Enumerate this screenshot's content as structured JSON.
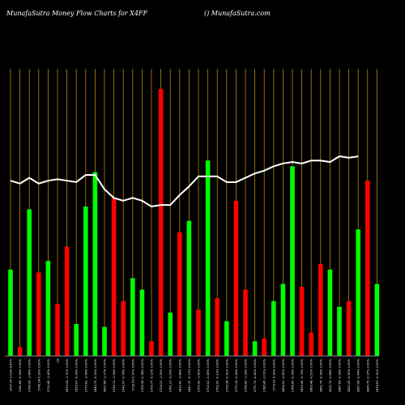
{
  "header": {
    "left": "MunafaSutra  Money Flow  Charts for X4FF",
    "right": "() MunafaSutra.com"
  },
  "colors": {
    "background": "#000000",
    "up": "#00ff00",
    "down": "#ff0000",
    "grid": "#b8860b",
    "line": "#ffffff",
    "text": "#ffffff"
  },
  "chart_data": {
    "type": "bar",
    "title": "",
    "xlabel": "",
    "ylabel": "",
    "ylim": [
      0,
      100
    ],
    "bars": [
      {
        "value": 30,
        "color": "green"
      },
      {
        "value": 3,
        "color": "red"
      },
      {
        "value": 51,
        "color": "green"
      },
      {
        "value": 29,
        "color": "red"
      },
      {
        "value": 33,
        "color": "green"
      },
      {
        "value": 18,
        "color": "red"
      },
      {
        "value": 38,
        "color": "red"
      },
      {
        "value": 11,
        "color": "green"
      },
      {
        "value": 52,
        "color": "green"
      },
      {
        "value": 64,
        "color": "green"
      },
      {
        "value": 10,
        "color": "green"
      },
      {
        "value": 55,
        "color": "red"
      },
      {
        "value": 19,
        "color": "red"
      },
      {
        "value": 27,
        "color": "green"
      },
      {
        "value": 23,
        "color": "green"
      },
      {
        "value": 5,
        "color": "red"
      },
      {
        "value": 93,
        "color": "red"
      },
      {
        "value": 15,
        "color": "green"
      },
      {
        "value": 43,
        "color": "red"
      },
      {
        "value": 47,
        "color": "green"
      },
      {
        "value": 16,
        "color": "red"
      },
      {
        "value": 68,
        "color": "green"
      },
      {
        "value": 20,
        "color": "red"
      },
      {
        "value": 12,
        "color": "green"
      },
      {
        "value": 54,
        "color": "red"
      },
      {
        "value": 23,
        "color": "red"
      },
      {
        "value": 5,
        "color": "green"
      },
      {
        "value": 6,
        "color": "red"
      },
      {
        "value": 19,
        "color": "green"
      },
      {
        "value": 25,
        "color": "green"
      },
      {
        "value": 66,
        "color": "green"
      },
      {
        "value": 24,
        "color": "red"
      },
      {
        "value": 8,
        "color": "red"
      },
      {
        "value": 32,
        "color": "red"
      },
      {
        "value": 30,
        "color": "green"
      },
      {
        "value": 17,
        "color": "green"
      },
      {
        "value": 19,
        "color": "red"
      },
      {
        "value": 44,
        "color": "green"
      },
      {
        "value": 61,
        "color": "red"
      },
      {
        "value": 25,
        "color": "green"
      }
    ],
    "line": [
      {
        "x": 0,
        "y": 61
      },
      {
        "x": 1,
        "y": 60
      },
      {
        "x": 2,
        "y": 62
      },
      {
        "x": 3,
        "y": 60
      },
      {
        "x": 4,
        "y": 61
      },
      {
        "x": 5,
        "y": 61.5
      },
      {
        "x": 6,
        "y": 61
      },
      {
        "x": 7,
        "y": 60.5
      },
      {
        "x": 8,
        "y": 63
      },
      {
        "x": 9,
        "y": 63
      },
      {
        "x": 10,
        "y": 58
      },
      {
        "x": 11,
        "y": 55
      },
      {
        "x": 12,
        "y": 54
      },
      {
        "x": 13,
        "y": 55
      },
      {
        "x": 14,
        "y": 54
      },
      {
        "x": 15,
        "y": 52
      },
      {
        "x": 16,
        "y": 52.5
      },
      {
        "x": 17,
        "y": 52.5
      },
      {
        "x": 18,
        "y": 56
      },
      {
        "x": 19,
        "y": 59
      },
      {
        "x": 20,
        "y": 62.5
      },
      {
        "x": 21,
        "y": 62.5
      },
      {
        "x": 22,
        "y": 62.5
      },
      {
        "x": 23,
        "y": 60.5
      },
      {
        "x": 24,
        "y": 60.5
      },
      {
        "x": 25,
        "y": 62
      },
      {
        "x": 26,
        "y": 63.5
      },
      {
        "x": 27,
        "y": 64.5
      },
      {
        "x": 28,
        "y": 66
      },
      {
        "x": 29,
        "y": 67
      },
      {
        "x": 30,
        "y": 67.5
      },
      {
        "x": 31,
        "y": 67
      },
      {
        "x": 32,
        "y": 68
      },
      {
        "x": 33,
        "y": 68
      },
      {
        "x": 34,
        "y": 67.5
      },
      {
        "x": 35,
        "y": 69.5
      },
      {
        "x": 36,
        "y": 69
      },
      {
        "x": 37,
        "y": 69.5
      }
    ],
    "tick_labels": [
      "1737.24 0.00%-6.87%",
      "1741.86 -0.04% 0.90%",
      "1794.04 -1.89% 0.00%",
      "1745.38 0.00% 0.00%",
      "1713.49 -3.40% 0.00%",
      "LN",
      "1679.28 -1.71% 0.00%",
      "1526.97 -0.35% 0.00%",
      "1770.81 -1.65% 0.00%",
      "1843.71 -0.01% 0.00%",
      "1827.66 -1.17% 0.00%",
      "1740.11 -1.04% 0.00%",
      "1742.97 -0.78% 0.00%",
      "1732.63 0.97% 0.00%",
      "1755.36 -0.58% 0.00%",
      "1739.77 -0.12% 0.00%",
      "1724.27 -1.53% 0.00%",
      "1761.23 -0.29% 0.00%",
      "1832.61 -3.86% 0.00%",
      "1841.37 -0.13% 0.00%",
      "1700.41 -1.61% 0.00%",
      "1710.02 -0.83% 0.00%",
      "1752.00 -0.13% 0.00%",
      "1735.36 -0.91% 0.00%",
      "1772.74 -0.44% 0.00%",
      "1798.40 -1.29% 0.00%",
      "1771.71 -0.41% 0.00%",
      "1785.45 -0.01% 0.00%",
      "1773.61 0.90% 0.00%",
      "1806.91 -0.61% 0.00%",
      "1786.60 -0.25% 0.00%",
      "1829.45 -0.74% 0.00%",
      "1863.46 -0.52% 0.00%",
      "1861.76 -0.99% 0.00%",
      "1831.75 -0.68% 0.00%",
      "1887.85 -0.04% 0.00%",
      "1852.25 -0.50% 0.00%",
      "1857.94 -0.44% 0.00%",
      "1845.75 -0.07% 0.00%",
      "1878.87 -0.01% 0.00%"
    ]
  }
}
